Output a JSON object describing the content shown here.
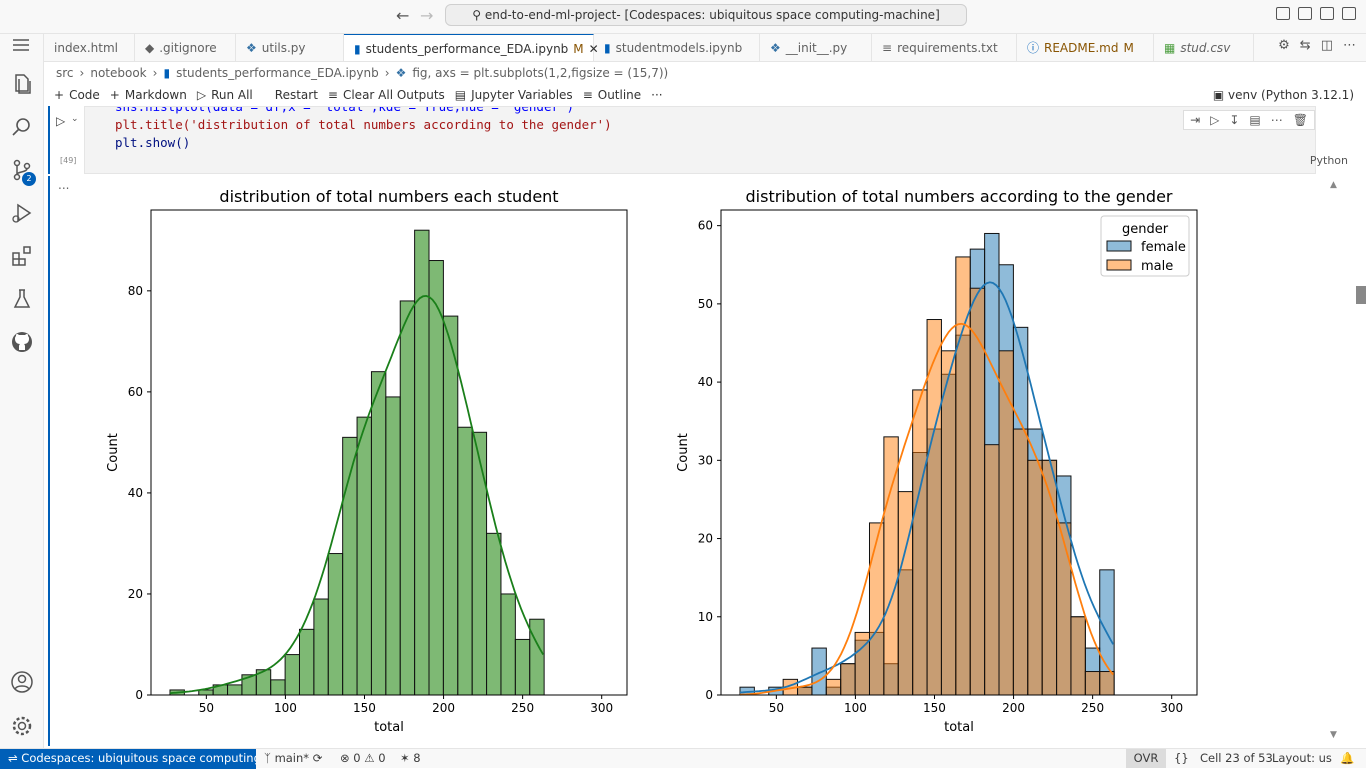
{
  "titlebar": {
    "search_text": "end-to-end-ml-project- [Codespaces: ubiquitous space computing-machine]"
  },
  "tabs": [
    {
      "label": "index.html",
      "mod": ""
    },
    {
      "label": ".gitignore",
      "mod": ""
    },
    {
      "label": "utils.py",
      "mod": ""
    },
    {
      "label": "students_performance_EDA.ipynb",
      "mod": "M"
    },
    {
      "label": "studentmodels.ipynb",
      "mod": ""
    },
    {
      "label": "__init__.py",
      "mod": ""
    },
    {
      "label": "requirements.txt",
      "mod": ""
    },
    {
      "label": "README.md",
      "mod": "M"
    },
    {
      "label": "stud.csv",
      "mod": ""
    }
  ],
  "breadcrumb": {
    "p1": "src",
    "p2": "notebook",
    "p3": "students_performance_EDA.ipynb",
    "p4": "fig, axs = plt.subplots(1,2,figsize = (15,7))"
  },
  "toolbar": {
    "code": "Code",
    "markdown": "Markdown",
    "run_all": "Run All",
    "restart": "Restart",
    "clear": "Clear All Outputs",
    "variables": "Jupyter Variables",
    "outline": "Outline",
    "more": "···",
    "kernel": "venv (Python 3.12.1)"
  },
  "cell": {
    "lines": [
      "sns.histplot(data = df,x = 'total',kde = True,hue = 'gender')",
      "plt.title('distribution of total numbers according to the gender')",
      "plt.show()"
    ],
    "exec_count": "[49]",
    "language": "Python",
    "output_dots": "..."
  },
  "activity": {
    "scm_badge": "2"
  },
  "statusbar": {
    "remote": "Codespaces: ubiquitous space computing-m...",
    "branch": "main*",
    "errors": "0",
    "warnings": "0",
    "ports": "8",
    "mode": "OVR",
    "braces": "{}",
    "cell": "Cell 23 of 53",
    "layout": "Layout: us"
  },
  "colors": {
    "accent": "#005fb8",
    "green": "#4c9e3f",
    "blue": "#1f77b4",
    "orange": "#ff7f0e"
  },
  "chart_data": [
    {
      "type": "bar",
      "title": "distribution of total numbers each student",
      "xlabel": "total",
      "ylabel": "Count",
      "bin_start": 27,
      "bin_width": 9.1,
      "values": [
        1,
        0,
        1,
        2,
        2,
        4,
        5,
        3,
        8,
        13,
        19,
        28,
        51,
        55,
        64,
        59,
        78,
        92,
        86,
        75,
        53,
        52,
        32,
        20,
        11,
        15
      ],
      "kde_peak": 83.5,
      "xlim": [
        15,
        316
      ],
      "ylim": [
        0,
        96
      ],
      "xticks": [
        50,
        100,
        150,
        200,
        250,
        300
      ],
      "yticks": [
        0,
        20,
        40,
        60,
        80
      ]
    },
    {
      "type": "bar",
      "title": "distribution of total numbers according to the gender",
      "xlabel": "total",
      "ylabel": "Count",
      "legend_title": "gender",
      "legend_position": "top-right",
      "bin_start": 27,
      "bin_width": 9.1,
      "series": [
        {
          "name": "female",
          "values": [
            1,
            0,
            1,
            0,
            1,
            6,
            1,
            4,
            7,
            8,
            4,
            16,
            31,
            34,
            41,
            46,
            57,
            59,
            55,
            47,
            34,
            30,
            28,
            10,
            6,
            16
          ]
        },
        {
          "name": "male",
          "values": [
            0,
            0,
            0,
            2,
            1,
            0,
            2,
            4,
            8,
            22,
            33,
            26,
            39,
            48,
            44,
            56,
            52,
            32,
            44,
            34,
            30,
            30,
            22,
            10,
            3,
            3
          ]
        }
      ],
      "xlim": [
        15,
        316
      ],
      "ylim": [
        0,
        62
      ],
      "xticks": [
        50,
        100,
        150,
        200,
        250,
        300
      ],
      "yticks": [
        0,
        10,
        20,
        30,
        40,
        50,
        60
      ]
    }
  ]
}
